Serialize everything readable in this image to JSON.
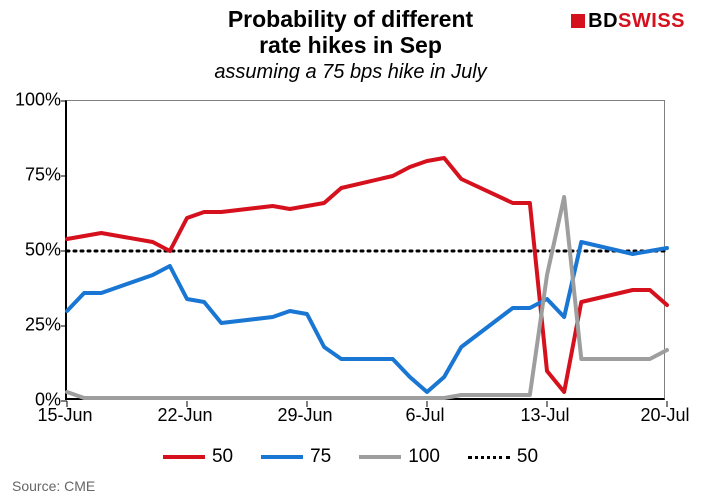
{
  "title_line1": "Probability of different",
  "title_line2": "rate hikes in Sep",
  "subtitle": "assuming a 75 bps hike in July",
  "source": "Source: CME",
  "logo": {
    "bd": "BD",
    "swiss": "SWISS"
  },
  "chart": {
    "type": "line",
    "background_color": "#ffffff",
    "plot_border_color": "#808080",
    "axis_color": "#000000",
    "label_fontsize": 18,
    "title_fontsize": 23,
    "subtitle_fontsize": 20,
    "xlim": [
      "2022-06-15",
      "2022-07-20"
    ],
    "ylim": [
      0,
      100
    ],
    "ytick_step": 25,
    "ytick_suffix": "%",
    "yticks": [
      0,
      25,
      50,
      75,
      100
    ],
    "xticks": [
      {
        "d": "2022-06-15",
        "label": "15-Jun"
      },
      {
        "d": "2022-06-22",
        "label": "22-Jun"
      },
      {
        "d": "2022-06-29",
        "label": "29-Jun"
      },
      {
        "d": "2022-07-06",
        "label": "6-Jul"
      },
      {
        "d": "2022-07-13",
        "label": "13-Jul"
      },
      {
        "d": "2022-07-20",
        "label": "20-Jul"
      }
    ],
    "ref_line": {
      "value": 50,
      "color": "#000000",
      "dash": "2,5",
      "stroke_width": 3
    },
    "series": [
      {
        "name": "50",
        "color": "#d6111e",
        "stroke_width": 4,
        "points": [
          {
            "d": "2022-06-15",
            "v": 54
          },
          {
            "d": "2022-06-16",
            "v": 55
          },
          {
            "d": "2022-06-17",
            "v": 56
          },
          {
            "d": "2022-06-20",
            "v": 53
          },
          {
            "d": "2022-06-21",
            "v": 50
          },
          {
            "d": "2022-06-22",
            "v": 61
          },
          {
            "d": "2022-06-23",
            "v": 63
          },
          {
            "d": "2022-06-24",
            "v": 63
          },
          {
            "d": "2022-06-27",
            "v": 65
          },
          {
            "d": "2022-06-28",
            "v": 64
          },
          {
            "d": "2022-06-29",
            "v": 65
          },
          {
            "d": "2022-06-30",
            "v": 66
          },
          {
            "d": "2022-07-01",
            "v": 71
          },
          {
            "d": "2022-07-04",
            "v": 75
          },
          {
            "d": "2022-07-05",
            "v": 78
          },
          {
            "d": "2022-07-06",
            "v": 80
          },
          {
            "d": "2022-07-07",
            "v": 81
          },
          {
            "d": "2022-07-08",
            "v": 74
          },
          {
            "d": "2022-07-11",
            "v": 66
          },
          {
            "d": "2022-07-12",
            "v": 66
          },
          {
            "d": "2022-07-13",
            "v": 10
          },
          {
            "d": "2022-07-14",
            "v": 3
          },
          {
            "d": "2022-07-15",
            "v": 33
          },
          {
            "d": "2022-07-18",
            "v": 37
          },
          {
            "d": "2022-07-19",
            "v": 37
          },
          {
            "d": "2022-07-20",
            "v": 32
          }
        ]
      },
      {
        "name": "75",
        "color": "#1976d2",
        "stroke_width": 4,
        "points": [
          {
            "d": "2022-06-15",
            "v": 30
          },
          {
            "d": "2022-06-16",
            "v": 36
          },
          {
            "d": "2022-06-17",
            "v": 36
          },
          {
            "d": "2022-06-20",
            "v": 42
          },
          {
            "d": "2022-06-21",
            "v": 45
          },
          {
            "d": "2022-06-22",
            "v": 34
          },
          {
            "d": "2022-06-23",
            "v": 33
          },
          {
            "d": "2022-06-24",
            "v": 26
          },
          {
            "d": "2022-06-27",
            "v": 28
          },
          {
            "d": "2022-06-28",
            "v": 30
          },
          {
            "d": "2022-06-29",
            "v": 29
          },
          {
            "d": "2022-06-30",
            "v": 18
          },
          {
            "d": "2022-07-01",
            "v": 14
          },
          {
            "d": "2022-07-04",
            "v": 14
          },
          {
            "d": "2022-07-05",
            "v": 8
          },
          {
            "d": "2022-07-06",
            "v": 3
          },
          {
            "d": "2022-07-07",
            "v": 8
          },
          {
            "d": "2022-07-08",
            "v": 18
          },
          {
            "d": "2022-07-11",
            "v": 31
          },
          {
            "d": "2022-07-12",
            "v": 31
          },
          {
            "d": "2022-07-13",
            "v": 34
          },
          {
            "d": "2022-07-14",
            "v": 28
          },
          {
            "d": "2022-07-15",
            "v": 53
          },
          {
            "d": "2022-07-18",
            "v": 49
          },
          {
            "d": "2022-07-19",
            "v": 50
          },
          {
            "d": "2022-07-20",
            "v": 51
          }
        ]
      },
      {
        "name": "100",
        "color": "#9e9e9e",
        "stroke_width": 4,
        "points": [
          {
            "d": "2022-06-15",
            "v": 3
          },
          {
            "d": "2022-06-16",
            "v": 1
          },
          {
            "d": "2022-06-17",
            "v": 1
          },
          {
            "d": "2022-06-20",
            "v": 1
          },
          {
            "d": "2022-06-21",
            "v": 1
          },
          {
            "d": "2022-06-22",
            "v": 1
          },
          {
            "d": "2022-06-23",
            "v": 1
          },
          {
            "d": "2022-06-24",
            "v": 1
          },
          {
            "d": "2022-06-27",
            "v": 1
          },
          {
            "d": "2022-06-28",
            "v": 1
          },
          {
            "d": "2022-06-29",
            "v": 1
          },
          {
            "d": "2022-06-30",
            "v": 1
          },
          {
            "d": "2022-07-01",
            "v": 1
          },
          {
            "d": "2022-07-04",
            "v": 1
          },
          {
            "d": "2022-07-05",
            "v": 1
          },
          {
            "d": "2022-07-06",
            "v": 1
          },
          {
            "d": "2022-07-07",
            "v": 1
          },
          {
            "d": "2022-07-08",
            "v": 2
          },
          {
            "d": "2022-07-11",
            "v": 2
          },
          {
            "d": "2022-07-12",
            "v": 2
          },
          {
            "d": "2022-07-13",
            "v": 42
          },
          {
            "d": "2022-07-14",
            "v": 68
          },
          {
            "d": "2022-07-15",
            "v": 14
          },
          {
            "d": "2022-07-18",
            "v": 14
          },
          {
            "d": "2022-07-19",
            "v": 14
          },
          {
            "d": "2022-07-20",
            "v": 17
          }
        ]
      }
    ],
    "legend": [
      {
        "label": "50",
        "color": "#d6111e",
        "style": "solid"
      },
      {
        "label": "75",
        "color": "#1976d2",
        "style": "solid"
      },
      {
        "label": "100",
        "color": "#9e9e9e",
        "style": "solid"
      },
      {
        "label": "50",
        "color": "#000000",
        "style": "dotted"
      }
    ]
  }
}
